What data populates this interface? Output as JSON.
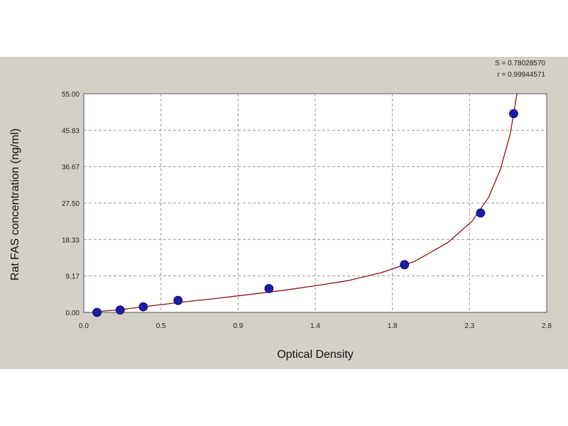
{
  "chart_data": {
    "type": "scatter",
    "xlabel": "Optical Density",
    "ylabel": "Rat FAS concentration (ng/ml)",
    "xlim": [
      0.0,
      2.8
    ],
    "ylim": [
      0.0,
      55.0
    ],
    "x_ticks": [
      "0.0",
      "0.5",
      "0.9",
      "1.4",
      "1.8",
      "2.3",
      "2.8"
    ],
    "y_ticks": [
      "0.00",
      "9.17",
      "18.33",
      "27.50",
      "36.67",
      "45.83",
      "55.00"
    ],
    "grid": true,
    "stats": [
      "S = 0.78028570",
      "r = 0.99944571"
    ],
    "points": [
      {
        "x": 0.08,
        "y": 0.0
      },
      {
        "x": 0.22,
        "y": 0.6
      },
      {
        "x": 0.36,
        "y": 1.4
      },
      {
        "x": 0.57,
        "y": 3.0
      },
      {
        "x": 1.12,
        "y": 6.0
      },
      {
        "x": 1.94,
        "y": 12.0
      },
      {
        "x": 2.4,
        "y": 25.0
      },
      {
        "x": 2.6,
        "y": 50.0
      }
    ],
    "fit_curve": [
      [
        0.05,
        0.1
      ],
      [
        0.2,
        0.6
      ],
      [
        0.4,
        1.6
      ],
      [
        0.6,
        2.6
      ],
      [
        0.8,
        3.5
      ],
      [
        1.0,
        4.5
      ],
      [
        1.2,
        5.5
      ],
      [
        1.4,
        6.7
      ],
      [
        1.6,
        8.0
      ],
      [
        1.8,
        10.0
      ],
      [
        2.0,
        12.8
      ],
      [
        2.2,
        17.5
      ],
      [
        2.35,
        23.0
      ],
      [
        2.45,
        29.0
      ],
      [
        2.52,
        36.0
      ],
      [
        2.58,
        45.0
      ],
      [
        2.62,
        55.0
      ]
    ],
    "colors": {
      "panel": "#d4d0c8",
      "plot_bg": "#ffffff",
      "grid": "#9a9a9a",
      "point": "#1c1ca8",
      "curve": "#8b1010"
    }
  }
}
